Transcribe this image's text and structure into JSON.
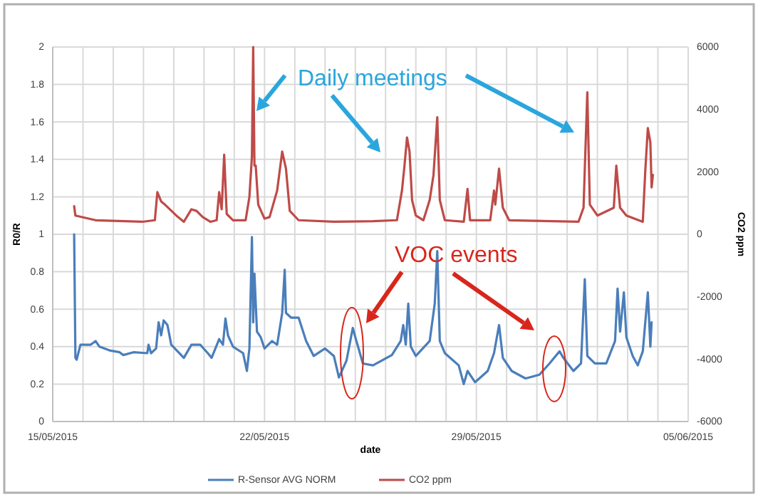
{
  "chart_data": {
    "type": "line",
    "xlabel": "date",
    "ylabel": "R0/R",
    "y2label": "CO2 ppm",
    "annotations": [
      "Daily meetings",
      "VOC events"
    ],
    "xlim": [
      "2015-05-15",
      "2015-06-05"
    ],
    "xticks": [
      {
        "value": "2015-05-15",
        "label": "15/05/2015"
      },
      {
        "value": "2015-05-16",
        "label": null
      },
      {
        "value": "2015-05-17",
        "label": null
      },
      {
        "value": "2015-05-18",
        "label": null
      },
      {
        "value": "2015-05-19",
        "label": null
      },
      {
        "value": "2015-05-20",
        "label": null
      },
      {
        "value": "2015-05-21",
        "label": null
      },
      {
        "value": "2015-05-22",
        "label": "22/05/2015"
      },
      {
        "value": "2015-05-23",
        "label": null
      },
      {
        "value": "2015-05-24",
        "label": null
      },
      {
        "value": "2015-05-25",
        "label": null
      },
      {
        "value": "2015-05-26",
        "label": null
      },
      {
        "value": "2015-05-27",
        "label": null
      },
      {
        "value": "2015-05-28",
        "label": null
      },
      {
        "value": "2015-05-29",
        "label": "29/05/2015"
      },
      {
        "value": "2015-05-30",
        "label": null
      },
      {
        "value": "2015-05-31",
        "label": null
      },
      {
        "value": "2015-06-01",
        "label": null
      },
      {
        "value": "2015-06-02",
        "label": null
      },
      {
        "value": "2015-06-03",
        "label": null
      },
      {
        "value": "2015-06-04",
        "label": null
      },
      {
        "value": "2015-06-05",
        "label": "05/06/2015"
      }
    ],
    "ylim": [
      0,
      2
    ],
    "yticks": [
      0,
      0.2,
      0.4,
      0.6,
      0.8,
      1,
      1.2,
      1.4,
      1.6,
      1.8,
      2
    ],
    "y2lim": [
      -6000,
      6000
    ],
    "y2ticks": [
      -6000,
      -4000,
      -2000,
      0,
      2000,
      4000,
      6000
    ],
    "grid": true,
    "legend": "bottom",
    "marker": "none",
    "line_style": "solid",
    "series": [
      {
        "name": "R-Sensor AVG NORM",
        "color": "#4a7ebb",
        "x": [
          "2015-05-15T17:00",
          "2015-05-15T18:00",
          "2015-05-15T19:00",
          "2015-05-15T22:00",
          "2015-05-16T06:00",
          "2015-05-16T10:00",
          "2015-05-16T13:00",
          "2015-05-16T21:00",
          "2015-05-17T05:00",
          "2015-05-17T08:00",
          "2015-05-17T16:00",
          "2015-05-18T03:00",
          "2015-05-18T04:00",
          "2015-05-18T06:00",
          "2015-05-18T10:00",
          "2015-05-18T12:00",
          "2015-05-18T14:00",
          "2015-05-18T16:00",
          "2015-05-18T19:00",
          "2015-05-18T22:00",
          "2015-05-19T08:00",
          "2015-05-19T14:00",
          "2015-05-19T21:00",
          "2015-05-20T03:00",
          "2015-05-20T06:00",
          "2015-05-20T12:00",
          "2015-05-20T15:00",
          "2015-05-20T17:00",
          "2015-05-20T19:00",
          "2015-05-20T23:00",
          "2015-05-21T07:00",
          "2015-05-21T10:00",
          "2015-05-21T12:00",
          "2015-05-21T14:00",
          "2015-05-21T15:00",
          "2015-05-21T16:00",
          "2015-05-21T18:00",
          "2015-05-21T21:00",
          "2015-05-22T00:00",
          "2015-05-22T06:00",
          "2015-05-22T10:00",
          "2015-05-22T14:00",
          "2015-05-22T16:00",
          "2015-05-22T17:00",
          "2015-05-22T21:00",
          "2015-05-23T03:00",
          "2015-05-23T09:00",
          "2015-05-23T15:00",
          "2015-05-24T00:00",
          "2015-05-24T07:00",
          "2015-05-24T11:00",
          "2015-05-24T17:00",
          "2015-05-24T22:00",
          "2015-05-25T00:00",
          "2015-05-25T06:00",
          "2015-05-25T14:00",
          "2015-05-26T05:00",
          "2015-05-26T12:00",
          "2015-05-26T14:00",
          "2015-05-26T16:00",
          "2015-05-26T18:00",
          "2015-05-26T20:00",
          "2015-05-27T00:00",
          "2015-05-27T11:00",
          "2015-05-27T15:00",
          "2015-05-27T17:00",
          "2015-05-27T19:00",
          "2015-05-27T23:00",
          "2015-05-28T10:00",
          "2015-05-28T14:00",
          "2015-05-28T17:00",
          "2015-05-28T23:00",
          "2015-05-29T09:00",
          "2015-05-29T14:00",
          "2015-05-29T18:00",
          "2015-05-29T21:00",
          "2015-05-30T04:00",
          "2015-05-30T15:00",
          "2015-05-31T02:00",
          "2015-05-31T10:00",
          "2015-05-31T18:00",
          "2015-05-31T21:00",
          "2015-06-01T05:00",
          "2015-06-01T11:00",
          "2015-06-01T14:00",
          "2015-06-01T16:00",
          "2015-06-01T22:00",
          "2015-06-02T07:00",
          "2015-06-02T14:00",
          "2015-06-02T16:00",
          "2015-06-02T18:00",
          "2015-06-02T21:00",
          "2015-06-02T23:00",
          "2015-06-03T04:00",
          "2015-06-03T08:00",
          "2015-06-03T12:00",
          "2015-06-03T16:00",
          "2015-06-03T18:00",
          "2015-06-03T19:00"
        ],
        "values": [
          1.0,
          0.34,
          0.33,
          0.41,
          0.41,
          0.43,
          0.4,
          0.38,
          0.37,
          0.355,
          0.37,
          0.365,
          0.41,
          0.365,
          0.39,
          0.53,
          0.46,
          0.54,
          0.515,
          0.41,
          0.34,
          0.41,
          0.41,
          0.365,
          0.34,
          0.44,
          0.41,
          0.55,
          0.46,
          0.4,
          0.365,
          0.27,
          0.39,
          0.985,
          0.53,
          0.79,
          0.48,
          0.45,
          0.39,
          0.43,
          0.41,
          0.58,
          0.81,
          0.58,
          0.555,
          0.555,
          0.43,
          0.35,
          0.39,
          0.35,
          0.235,
          0.325,
          0.5,
          0.45,
          0.31,
          0.3,
          0.355,
          0.43,
          0.515,
          0.41,
          0.63,
          0.4,
          0.35,
          0.43,
          0.63,
          0.91,
          0.43,
          0.365,
          0.3,
          0.2,
          0.27,
          0.21,
          0.27,
          0.365,
          0.515,
          0.34,
          0.27,
          0.23,
          0.25,
          0.31,
          0.375,
          0.34,
          0.27,
          0.31,
          0.76,
          0.35,
          0.31,
          0.31,
          0.43,
          0.71,
          0.48,
          0.69,
          0.45,
          0.35,
          0.3,
          0.375,
          0.69,
          0.4,
          0.53
        ]
      },
      {
        "name": "CO2 ppm",
        "color": "#be4b48",
        "axis": "y2",
        "x": [
          "2015-05-15T17:00",
          "2015-05-15T18:00",
          "2015-05-16T10:00",
          "2015-05-17T23:00",
          "2015-05-18T09:00",
          "2015-05-18T11:00",
          "2015-05-18T14:00",
          "2015-05-18T17:00",
          "2015-05-19T02:00",
          "2015-05-19T08:00",
          "2015-05-19T14:00",
          "2015-05-19T18:00",
          "2015-05-19T23:00",
          "2015-05-20T05:00",
          "2015-05-20T10:00",
          "2015-05-20T12:00",
          "2015-05-20T14:00",
          "2015-05-20T16:00",
          "2015-05-20T18:00",
          "2015-05-20T23:00",
          "2015-05-21T09:00",
          "2015-05-21T12:00",
          "2015-05-21T14:00",
          "2015-05-21T15:00",
          "2015-05-21T16:00",
          "2015-05-21T17:00",
          "2015-05-21T19:00",
          "2015-05-22T00:00",
          "2015-05-22T04:00",
          "2015-05-22T10:00",
          "2015-05-22T14:00",
          "2015-05-22T17:00",
          "2015-05-22T20:00",
          "2015-05-23T03:00",
          "2015-05-24T07:00",
          "2015-05-25T14:00",
          "2015-05-26T09:00",
          "2015-05-26T13:00",
          "2015-05-26T15:00",
          "2015-05-26T17:00",
          "2015-05-26T19:00",
          "2015-05-26T21:00",
          "2015-05-27T00:00",
          "2015-05-27T06:00",
          "2015-05-27T11:00",
          "2015-05-27T14:00",
          "2015-05-27T17:00",
          "2015-05-27T19:00",
          "2015-05-27T23:00",
          "2015-05-28T14:00",
          "2015-05-28T17:00",
          "2015-05-28T19:00",
          "2015-05-29T11:00",
          "2015-05-29T14:00",
          "2015-05-29T15:00",
          "2015-05-29T18:00",
          "2015-05-29T21:00",
          "2015-05-30T02:00",
          "2015-06-01T09:00",
          "2015-06-01T13:00",
          "2015-06-01T16:00",
          "2015-06-01T18:00",
          "2015-06-02T00:00",
          "2015-06-02T13:00",
          "2015-06-02T15:00",
          "2015-06-02T18:00",
          "2015-06-02T23:00",
          "2015-06-03T12:00",
          "2015-06-03T14:00",
          "2015-06-03T16:00",
          "2015-06-03T18:00",
          "2015-06-03T19:00",
          "2015-06-03T20:00"
        ],
        "values": [
          900,
          600,
          450,
          400,
          450,
          1350,
          1050,
          950,
          600,
          400,
          800,
          750,
          550,
          400,
          450,
          1350,
          800,
          2550,
          650,
          450,
          450,
          1200,
          2500,
          6000,
          2200,
          2200,
          950,
          500,
          550,
          1400,
          2650,
          2100,
          750,
          450,
          400,
          420,
          450,
          1400,
          2200,
          3100,
          2650,
          1100,
          600,
          450,
          1100,
          1900,
          3750,
          1100,
          450,
          400,
          1450,
          450,
          450,
          1400,
          950,
          2100,
          850,
          450,
          400,
          850,
          4550,
          950,
          600,
          850,
          2200,
          850,
          600,
          400,
          2050,
          3400,
          2950,
          1500,
          1900
        ]
      }
    ]
  }
}
